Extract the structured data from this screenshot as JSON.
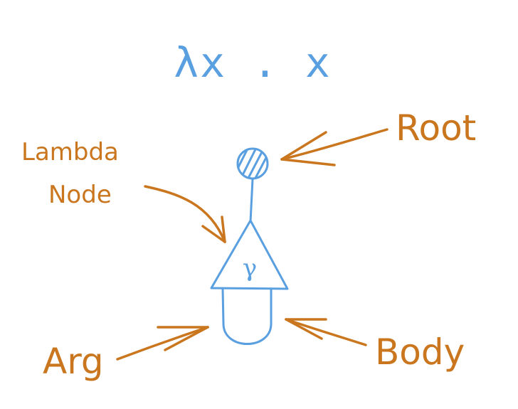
{
  "title": "λx . x",
  "labels": {
    "root": "Root",
    "lambda_node_line1": "Lambda",
    "lambda_node_line2": "Node",
    "arg": "Arg",
    "body": "Body"
  },
  "node_symbol": "γ",
  "colors": {
    "term": "#5a9fe0",
    "annotation": "#c9761e"
  }
}
